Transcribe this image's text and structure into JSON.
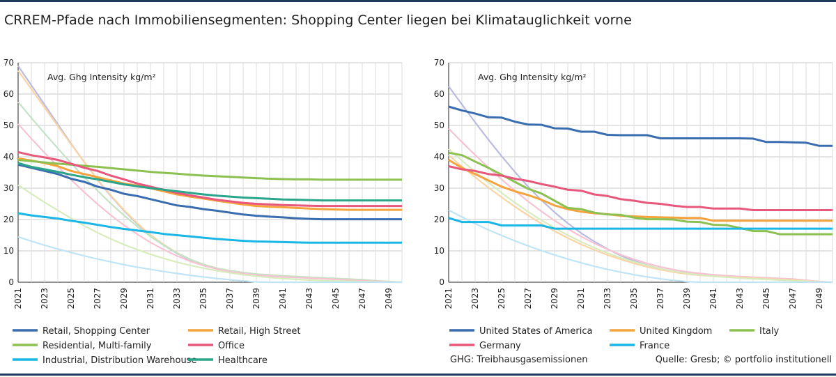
{
  "title": "CRREM-Pfade nach Immobiliensegmenten: Shopping Center liegen bei Klimatauglichkeit vorne",
  "footnote": "GHG: Treibhausgasemissionen",
  "source": "Quelle: Gresb; © portfolio institutionell",
  "chart_data": [
    {
      "type": "line",
      "ylabel": "Avg. Ghg Intensity kg/m²",
      "xlabel": "",
      "ylim": [
        0,
        70
      ],
      "yticks": [
        0,
        10,
        20,
        30,
        40,
        50,
        60,
        70
      ],
      "xticks": [
        "2021",
        "2023",
        "2025",
        "2027",
        "2029",
        "2031",
        "2033",
        "2035",
        "2037",
        "2039",
        "2041",
        "2043",
        "2045",
        "2047",
        "2049"
      ],
      "x": [
        2021,
        2022,
        2023,
        2024,
        2025,
        2026,
        2027,
        2028,
        2029,
        2030,
        2031,
        2032,
        2033,
        2034,
        2035,
        2036,
        2037,
        2038,
        2039,
        2040,
        2041,
        2042,
        2043,
        2044,
        2045,
        2046,
        2047,
        2048,
        2049,
        2050
      ],
      "grid": true,
      "legend_position": "bottom",
      "series": [
        {
          "name": "Retail, Shopping Center",
          "color": "#3a6db0",
          "kind": "actual",
          "values": [
            37.5,
            36.5,
            35.5,
            34.5,
            33,
            32,
            30.5,
            29.5,
            28.2,
            27.5,
            26.5,
            25.5,
            24.5,
            24,
            23.3,
            22.8,
            22.2,
            21.6,
            21.2,
            20.9,
            20.7,
            20.4,
            20.2,
            20.1,
            20.1,
            20.1,
            20.1,
            20.1,
            20.1,
            20.1
          ]
        },
        {
          "name": "Retail, High Street",
          "color": "#f4a33d",
          "kind": "actual",
          "values": [
            39.5,
            38.8,
            38,
            37,
            35.5,
            34.5,
            33.5,
            32.5,
            31.5,
            30.8,
            30,
            29,
            28,
            27.3,
            26.7,
            26,
            25.4,
            24.8,
            24.3,
            24.1,
            23.9,
            23.7,
            23.5,
            23.3,
            23.2,
            23.1,
            23.1,
            23.1,
            23.1,
            23.1
          ]
        },
        {
          "name": "Residential, Multi-family",
          "color": "#8cc152",
          "kind": "actual",
          "values": [
            39,
            38.6,
            38.2,
            37.8,
            37.5,
            37.1,
            36.8,
            36.4,
            36,
            35.6,
            35.2,
            34.9,
            34.6,
            34.3,
            34,
            33.8,
            33.6,
            33.4,
            33.2,
            33,
            32.9,
            32.8,
            32.8,
            32.7,
            32.7,
            32.7,
            32.7,
            32.7,
            32.7,
            32.7
          ]
        },
        {
          "name": "Office",
          "color": "#e8577c",
          "kind": "actual",
          "values": [
            41.5,
            40.5,
            39.8,
            39,
            37.8,
            36.5,
            35.5,
            34,
            32.8,
            31.5,
            30.5,
            29.5,
            28.5,
            27.7,
            27,
            26.3,
            25.8,
            25.3,
            25,
            24.8,
            24.6,
            24.5,
            24.4,
            24.3,
            24.3,
            24.3,
            24.3,
            24.3,
            24.3,
            24.3
          ]
        },
        {
          "name": "Industrial, Distribution Warehouse",
          "color": "#19b6e6",
          "kind": "actual",
          "values": [
            22,
            21.3,
            20.8,
            20.3,
            19.6,
            19,
            18.3,
            17.6,
            17,
            16.5,
            16,
            15.4,
            15,
            14.6,
            14.2,
            13.8,
            13.5,
            13.2,
            13,
            12.9,
            12.8,
            12.7,
            12.6,
            12.6,
            12.6,
            12.6,
            12.6,
            12.6,
            12.6,
            12.6
          ]
        },
        {
          "name": "Healthcare",
          "color": "#2aa58a",
          "kind": "actual",
          "values": [
            38,
            36.8,
            36,
            35.2,
            34.3,
            33.5,
            32.8,
            32,
            31.2,
            30.6,
            30,
            29.5,
            29,
            28.5,
            28,
            27.6,
            27.3,
            27,
            26.8,
            26.6,
            26.4,
            26.3,
            26.2,
            26.1,
            26.1,
            26.1,
            26.1,
            26.1,
            26.1,
            26.1
          ]
        },
        {
          "name": "",
          "color": "#b9bcdf",
          "kind": "pathway",
          "values": [
            69,
            62.8,
            56.6,
            50.4,
            44.2,
            38.3,
            32.7,
            27.5,
            22.8,
            18.6,
            14.9,
            11.8,
            9.2,
            7.1,
            5.5,
            4.3,
            3.5,
            2.9,
            2.5,
            2.2,
            1.9,
            1.7,
            1.5,
            1.3,
            1.1,
            0.9,
            0.7,
            0.5,
            0.2,
            0
          ]
        },
        {
          "name": "",
          "color": "#fbd3a4",
          "kind": "pathway",
          "values": [
            67.5,
            61.6,
            55.7,
            49.8,
            44,
            38.3,
            32.8,
            27.7,
            23,
            18.8,
            15.1,
            12,
            9.4,
            7.3,
            5.7,
            4.5,
            3.7,
            3.1,
            2.6,
            2.3,
            2,
            1.8,
            1.6,
            1.4,
            1.2,
            1,
            0.8,
            0.5,
            0.2,
            0
          ]
        },
        {
          "name": "",
          "color": "#c2e3c4",
          "kind": "pathway",
          "values": [
            57.5,
            52.4,
            47.5,
            42.7,
            38,
            33.5,
            29.2,
            25.1,
            21.3,
            17.8,
            14.6,
            11.8,
            9.3,
            7.3,
            5.7,
            4.5,
            3.7,
            3.1,
            2.6,
            2.3,
            2,
            1.8,
            1.6,
            1.4,
            1.2,
            1,
            0.8,
            0.5,
            0.2,
            0
          ]
        },
        {
          "name": "",
          "color": "#f7c3d3",
          "kind": "pathway",
          "values": [
            50.5,
            45.8,
            41.3,
            36.9,
            32.7,
            28.7,
            24.9,
            21.4,
            18.2,
            15.3,
            12.7,
            10.4,
            8.4,
            6.7,
            5.3,
            4.2,
            3.4,
            2.8,
            2.3,
            2,
            1.7,
            1.5,
            1.3,
            1.1,
            0.9,
            0.7,
            0.5,
            0.3,
            0.1,
            0
          ]
        },
        {
          "name": "",
          "color": "#d8ecbd",
          "kind": "pathway",
          "values": [
            31,
            28.2,
            25.5,
            22.9,
            20.4,
            18,
            15.8,
            13.8,
            12,
            10.4,
            8.9,
            7.6,
            6.4,
            5.4,
            4.5,
            3.7,
            3,
            2.4,
            1.9,
            1.5,
            1.2,
            0.9,
            0.7,
            0.5,
            0.4,
            0.3,
            0.2,
            0.1,
            0,
            0
          ]
        },
        {
          "name": "",
          "color": "#bfe4f5",
          "kind": "pathway",
          "values": [
            14.5,
            13.1,
            11.8,
            10.6,
            9.5,
            8.4,
            7.4,
            6.5,
            5.6,
            4.8,
            4.1,
            3.4,
            2.8,
            2.2,
            1.7,
            1.2,
            0.8,
            0.4,
            0.1,
            0,
            0,
            0,
            0,
            0,
            0,
            0,
            0,
            0,
            0,
            0
          ]
        }
      ]
    },
    {
      "type": "line",
      "ylabel": "Avg. Ghg Intensity kg/m²",
      "xlabel": "",
      "ylim": [
        0,
        70
      ],
      "yticks": [
        0,
        10,
        20,
        30,
        40,
        50,
        60,
        70
      ],
      "xticks": [
        "2021",
        "2023",
        "2025",
        "2027",
        "2029",
        "2031",
        "2033",
        "2035",
        "2037",
        "2039",
        "2041",
        "2043",
        "2045",
        "2047",
        "2049"
      ],
      "x": [
        2021,
        2022,
        2023,
        2024,
        2025,
        2026,
        2027,
        2028,
        2029,
        2030,
        2031,
        2032,
        2033,
        2034,
        2035,
        2036,
        2037,
        2038,
        2039,
        2040,
        2041,
        2042,
        2043,
        2044,
        2045,
        2046,
        2047,
        2048,
        2049,
        2050
      ],
      "grid": true,
      "legend_position": "bottom",
      "series": [
        {
          "name": "United States of America",
          "color": "#3a6db0",
          "kind": "actual",
          "values": [
            56,
            54.8,
            53.8,
            52.6,
            52.5,
            51.2,
            50.3,
            50.2,
            49.1,
            49,
            48,
            48,
            47,
            46.9,
            46.9,
            46.9,
            45.9,
            45.9,
            45.9,
            45.9,
            45.9,
            45.9,
            45.9,
            45.8,
            44.7,
            44.7,
            44.6,
            44.5,
            43.5,
            43.5
          ]
        },
        {
          "name": "United Kingdom",
          "color": "#f4a33d",
          "kind": "actual",
          "values": [
            39,
            36.5,
            34.5,
            32.5,
            30.5,
            29,
            27.8,
            26.3,
            24.5,
            23.3,
            22.5,
            22,
            21.7,
            21.2,
            21,
            20.8,
            20.7,
            20.6,
            20.5,
            20.5,
            19.6,
            19.6,
            19.6,
            19.6,
            19.6,
            19.6,
            19.6,
            19.6,
            19.6,
            19.6
          ]
        },
        {
          "name": "Italy",
          "color": "#8cc152",
          "kind": "actual",
          "values": [
            41.3,
            40.5,
            38.5,
            36.5,
            34.3,
            32,
            29.8,
            28.3,
            26,
            23.7,
            23.3,
            22.2,
            21.6,
            21.5,
            20.6,
            20.1,
            20.1,
            20,
            19.3,
            19.2,
            18.3,
            18.2,
            17.3,
            16.3,
            16.3,
            15.3,
            15.3,
            15.3,
            15.3,
            15.3
          ]
        },
        {
          "name": "Germany",
          "color": "#e8577c",
          "kind": "actual",
          "values": [
            37,
            36,
            35.5,
            34.5,
            34,
            33,
            32.3,
            31.3,
            30.5,
            29.5,
            29.2,
            28,
            27.5,
            26.5,
            26,
            25.3,
            25,
            24.4,
            24,
            24,
            23.5,
            23.5,
            23.5,
            23,
            23,
            23,
            23,
            23,
            23,
            23
          ]
        },
        {
          "name": "France",
          "color": "#19b6e6",
          "kind": "actual",
          "values": [
            20.5,
            19.2,
            19.2,
            19.2,
            18.1,
            18.1,
            18.1,
            18.1,
            17.1,
            17.1,
            17.1,
            17.1,
            17.1,
            17.1,
            17.1,
            17.1,
            17.1,
            17.1,
            17.1,
            17.1,
            17.1,
            17.1,
            17.1,
            17.1,
            17.1,
            17.1,
            17.1,
            17.1,
            17.1,
            17.1
          ]
        },
        {
          "name": "",
          "color": "#b9bcdf",
          "kind": "pathway",
          "values": [
            62.5,
            56.7,
            51,
            45.5,
            40.2,
            35.2,
            30.5,
            26.2,
            22.3,
            18.8,
            15.7,
            13,
            10.6,
            8.5,
            6.8,
            5.4,
            4.3,
            3.5,
            2.9,
            2.5,
            2.2,
            2,
            1.8,
            1.6,
            1.4,
            1.2,
            1,
            0.6,
            0.2,
            0
          ]
        },
        {
          "name": "",
          "color": "#f7c3d3",
          "kind": "pathway",
          "values": [
            49,
            44.7,
            40.6,
            36.6,
            32.8,
            29.2,
            25.8,
            22.6,
            19.7,
            17,
            14.6,
            12.4,
            10.5,
            8.8,
            7.3,
            6,
            4.9,
            4,
            3.3,
            2.8,
            2.4,
            2.1,
            1.8,
            1.6,
            1.4,
            1.2,
            1,
            0.6,
            0.2,
            0
          ]
        },
        {
          "name": "",
          "color": "#fbd3a4",
          "kind": "pathway",
          "values": [
            40.5,
            36.9,
            33.5,
            30.2,
            27.1,
            24.1,
            21.3,
            18.7,
            16.3,
            14.1,
            12.1,
            10.3,
            8.7,
            7.3,
            6,
            4.9,
            4,
            3.2,
            2.6,
            2.2,
            1.9,
            1.7,
            1.5,
            1.3,
            1.1,
            0.9,
            0.7,
            0.4,
            0.1,
            0
          ]
        },
        {
          "name": "",
          "color": "#d8ecbd",
          "kind": "pathway",
          "values": [
            42.5,
            38.8,
            35.2,
            31.8,
            28.5,
            25.4,
            22.5,
            19.8,
            17.3,
            15,
            12.9,
            11,
            9.3,
            7.8,
            6.5,
            5.3,
            4.3,
            3.5,
            2.8,
            2.3,
            1.9,
            1.6,
            1.3,
            1.1,
            0.9,
            0.7,
            0.5,
            0.3,
            0.1,
            0
          ]
        },
        {
          "name": "",
          "color": "#bfe4f5",
          "kind": "pathway",
          "values": [
            23,
            20.8,
            18.7,
            16.7,
            14.9,
            13.2,
            11.6,
            10.1,
            8.7,
            7.4,
            6.2,
            5.1,
            4.1,
            3.2,
            2.4,
            1.7,
            1.1,
            0.6,
            0.2,
            0,
            0,
            0,
            0,
            0,
            0,
            0,
            0,
            0,
            0,
            0
          ]
        }
      ]
    }
  ]
}
